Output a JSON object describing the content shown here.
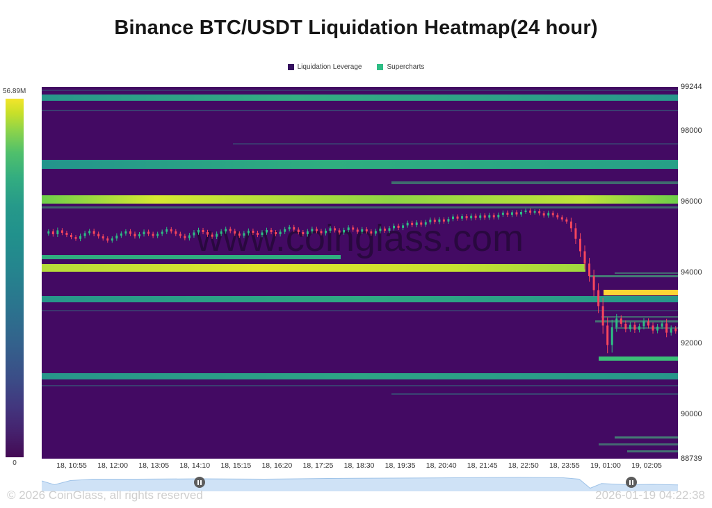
{
  "title": "Binance BTC/USDT Liquidation Heatmap(24 hour)",
  "legend": [
    {
      "label": "Liquidation Leverage",
      "color": "#35115f"
    },
    {
      "label": "Supercharts",
      "color": "#2ebd85"
    }
  ],
  "colorbar": {
    "max_label": "56.89M",
    "min_label": "0"
  },
  "watermark": "www.coinglass.com",
  "footer": {
    "copyright": "© 2026 CoinGlass, all rights reserved",
    "timestamp": "2026-01-19 04:22:38"
  },
  "navigator": {
    "fill": "#cfe2f6",
    "line": "#9fc3e8",
    "handles": [
      0.248,
      0.927
    ],
    "area": [
      [
        0,
        0.4
      ],
      [
        0.02,
        0.62
      ],
      [
        0.045,
        0.38
      ],
      [
        0.08,
        0.3
      ],
      [
        0.15,
        0.3
      ],
      [
        0.25,
        0.28
      ],
      [
        0.35,
        0.3
      ],
      [
        0.45,
        0.26
      ],
      [
        0.55,
        0.24
      ],
      [
        0.65,
        0.22
      ],
      [
        0.75,
        0.2
      ],
      [
        0.82,
        0.22
      ],
      [
        0.845,
        0.3
      ],
      [
        0.862,
        0.82
      ],
      [
        0.88,
        0.55
      ],
      [
        0.92,
        0.62
      ],
      [
        0.96,
        0.6
      ],
      [
        1,
        0.63
      ]
    ]
  },
  "chart_data": {
    "type": "heatmap",
    "title": "Binance BTC/USDT Liquidation Heatmap(24 hour)",
    "background_color": "#430a63",
    "y_axis": {
      "min": 88739,
      "max": 99244,
      "ticks": [
        99244,
        98000,
        96000,
        94000,
        92000,
        90000,
        88739
      ]
    },
    "x_ticks": [
      "18, 10:55",
      "18, 12:00",
      "18, 13:05",
      "18, 14:10",
      "18, 15:15",
      "18, 16:20",
      "18, 17:25",
      "18, 18:30",
      "18, 19:35",
      "18, 20:40",
      "18, 21:45",
      "18, 22:50",
      "18, 23:55",
      "19, 01:00",
      "19, 02:05"
    ],
    "colorbar": {
      "max": "56.89M",
      "min": "0"
    },
    "liquidation_bands": [
      {
        "price": 99150,
        "xStart": 0,
        "xEnd": 1,
        "height": 2,
        "color": "rgba(45,160,140,0.30)"
      },
      {
        "price": 98930,
        "xStart": 0,
        "xEnd": 1,
        "height": 9,
        "color": "linear-gradient(90deg,#28988b,#33ad82 40%,#28988b)"
      },
      {
        "price": 98580,
        "xStart": 0,
        "xEnd": 1,
        "height": 2,
        "color": "rgba(45,160,140,0.35)"
      },
      {
        "price": 97630,
        "xStart": 0.3,
        "xEnd": 1,
        "height": 2,
        "color": "rgba(45,160,140,0.30)"
      },
      {
        "price": 97060,
        "xStart": 0,
        "xEnd": 1,
        "height": 13,
        "color": "linear-gradient(90deg,#23948c,#2fae7f 45%,#26a087)"
      },
      {
        "price": 96540,
        "xStart": 0.55,
        "xEnd": 1,
        "height": 4,
        "color": "rgba(60,190,120,0.55)"
      },
      {
        "price": 96060,
        "xStart": 0,
        "xEnd": 1,
        "height": 12,
        "color": "linear-gradient(90deg,#6ece4a,#d6e832 18%,#8ed645 55%,#bfe43a 85%,#6ece4a)"
      },
      {
        "price": 95830,
        "xStart": 0,
        "xEnd": 1,
        "height": 3,
        "color": "rgba(60,190,120,0.50)"
      },
      {
        "price": 94430,
        "xStart": 0,
        "xEnd": 0.47,
        "height": 6,
        "color": "#2fae7f"
      },
      {
        "price": 94130,
        "xStart": 0,
        "xEnd": 0.855,
        "height": 11,
        "color": "linear-gradient(90deg,#b5dd3a,#e0e52c 40%,#c8e230 75%,#9fd83f)"
      },
      {
        "price": 93980,
        "xStart": 0.9,
        "xEnd": 1,
        "height": 2,
        "color": "rgba(70,200,130,0.50)"
      },
      {
        "price": 93890,
        "xStart": 0.86,
        "xEnd": 1,
        "height": 3,
        "color": "rgba(70,200,130,0.60)"
      },
      {
        "price": 93430,
        "xStart": 0.883,
        "xEnd": 1,
        "height": 8,
        "color": "#fcd535"
      },
      {
        "price": 93240,
        "xStart": 0,
        "xEnd": 1,
        "height": 9,
        "color": "linear-gradient(90deg,#27968a,#2fa983 50%,#27968a)"
      },
      {
        "price": 92930,
        "xStart": 0,
        "xEnd": 1,
        "height": 2,
        "color": "rgba(45,160,140,0.30)"
      },
      {
        "price": 92750,
        "xStart": 0.88,
        "xEnd": 1,
        "height": 2,
        "color": "rgba(70,200,130,0.50)"
      },
      {
        "price": 92620,
        "xStart": 0.87,
        "xEnd": 1,
        "height": 3,
        "color": "rgba(70,200,130,0.55)"
      },
      {
        "price": 92440,
        "xStart": 0.9,
        "xEnd": 1,
        "height": 2,
        "color": "rgba(70,200,130,0.45)"
      },
      {
        "price": 91560,
        "xStart": 0.875,
        "xEnd": 1,
        "height": 6,
        "color": "#3bbf77"
      },
      {
        "price": 91060,
        "xStart": 0,
        "xEnd": 1,
        "height": 9,
        "color": "linear-gradient(90deg,#27968a,#2da585 50%,#27968a)"
      },
      {
        "price": 90800,
        "xStart": 0,
        "xEnd": 1,
        "height": 2,
        "color": "rgba(45,160,140,0.35)"
      },
      {
        "price": 90560,
        "xStart": 0.55,
        "xEnd": 1,
        "height": 2,
        "color": "rgba(45,160,140,0.40)"
      },
      {
        "price": 89340,
        "xStart": 0.9,
        "xEnd": 1,
        "height": 3,
        "color": "rgba(70,200,130,0.60)"
      },
      {
        "price": 89150,
        "xStart": 0.875,
        "xEnd": 1,
        "height": 3,
        "color": "rgba(70,200,130,0.50)"
      },
      {
        "price": 88950,
        "xStart": 0.92,
        "xEnd": 1,
        "height": 3,
        "color": "rgba(70,200,130,0.55)"
      }
    ],
    "price_series": {
      "type": "candlestick",
      "up_color": "#2ebd85",
      "down_color": "#f6465d",
      "closes": [
        95100,
        95160,
        95080,
        95190,
        95120,
        95060,
        95000,
        94950,
        95030,
        95110,
        95170,
        95090,
        95020,
        94960,
        94900,
        94960,
        95040,
        95100,
        95160,
        95090,
        95020,
        95080,
        95150,
        95090,
        95030,
        95090,
        95150,
        95220,
        95160,
        95090,
        95030,
        94970,
        95050,
        95130,
        95200,
        95140,
        95070,
        95010,
        95090,
        95160,
        95230,
        95170,
        95100,
        95040,
        95110,
        95180,
        95120,
        95060,
        95130,
        95200,
        95140,
        95080,
        95150,
        95220,
        95280,
        95210,
        95140,
        95080,
        95160,
        95230,
        95170,
        95110,
        95180,
        95250,
        95190,
        95130,
        95200,
        95270,
        95210,
        95150,
        95220,
        95160,
        95100,
        95170,
        95240,
        95180,
        95250,
        95320,
        95260,
        95330,
        95400,
        95340,
        95410,
        95350,
        95420,
        95490,
        95430,
        95500,
        95440,
        95510,
        95580,
        95520,
        95590,
        95530,
        95600,
        95540,
        95610,
        95550,
        95620,
        95560,
        95630,
        95690,
        95630,
        95700,
        95640,
        95710,
        95750,
        95690,
        95730,
        95670,
        95610,
        95680,
        95620,
        95560,
        95500,
        95440,
        95250,
        94950,
        94600,
        94250,
        93900,
        93500,
        93050,
        92500,
        91950,
        92450,
        92700,
        92550,
        92400,
        92520,
        92380,
        92480,
        92620,
        92500,
        92360,
        92470,
        92560,
        92300,
        92420,
        92340
      ]
    }
  }
}
